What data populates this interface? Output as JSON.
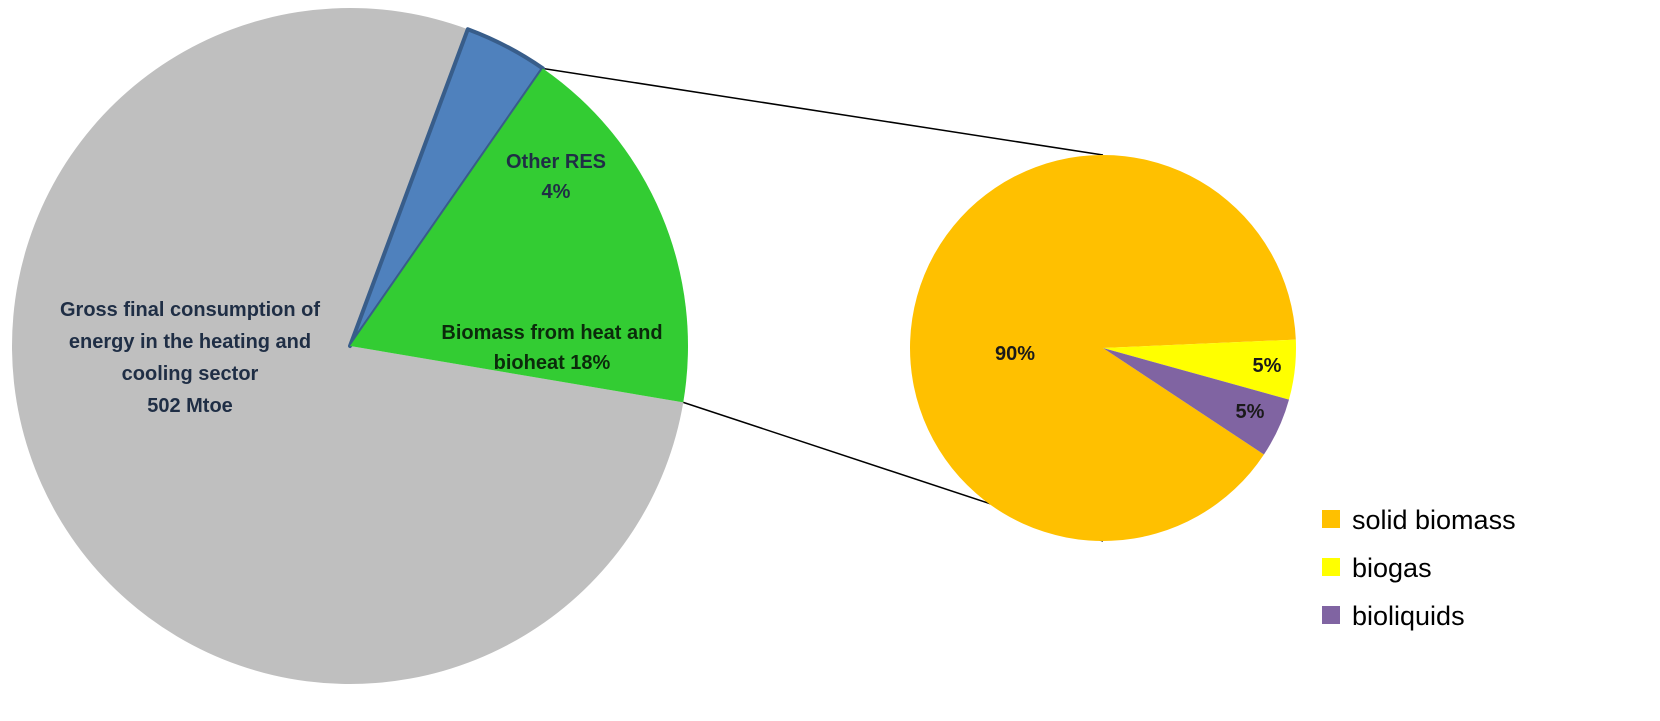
{
  "chart_data": [
    {
      "type": "pie",
      "title": "",
      "slices": [
        {
          "label": "Gross final consumption of energy  in the heating and cooling sector 502 Mtoe",
          "value": 78,
          "color": "#BFBFBF",
          "label_lines": [
            "Gross final consumption of",
            "energy  in the heating and",
            "cooling sector",
            "502 Mtoe"
          ]
        },
        {
          "label": "Other RES 4%",
          "value": 4,
          "color": "#4F81BD",
          "label_lines": [
            "Other RES",
            "4%"
          ]
        },
        {
          "label": "Biomass from heat and bioheat 18%",
          "value": 18,
          "color": "#33CC33",
          "label_lines": [
            "Biomass from heat and",
            "bioheat 18%"
          ]
        }
      ]
    },
    {
      "type": "pie",
      "title": "",
      "slices": [
        {
          "label": "solid biomass",
          "value": 90,
          "data_label": "90%",
          "color": "#FFC000"
        },
        {
          "label": "biogas",
          "value": 5,
          "data_label": "5%",
          "color": "#FFFF00"
        },
        {
          "label": "bioliquids",
          "value": 5,
          "data_label": "5%",
          "color": "#8064A2"
        }
      ],
      "legend": {
        "position": "bottom-right",
        "entries": [
          "solid biomass",
          "biogas",
          "bioliquids"
        ]
      }
    }
  ]
}
